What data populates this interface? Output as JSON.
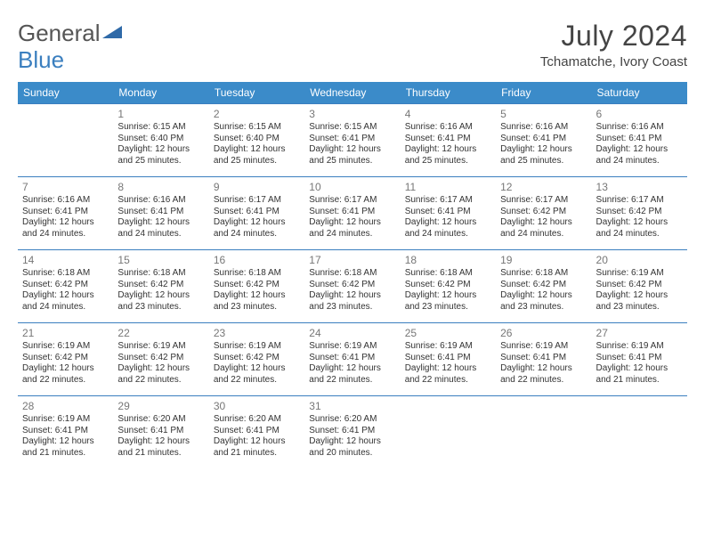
{
  "brand": {
    "part1": "General",
    "part2": "Blue"
  },
  "title": "July 2024",
  "location": "Tchamatche, Ivory Coast",
  "header_bg": "#3b8bc9",
  "border_color": "#3b7fbf",
  "weekdays": [
    "Sunday",
    "Monday",
    "Tuesday",
    "Wednesday",
    "Thursday",
    "Friday",
    "Saturday"
  ],
  "weeks": [
    [
      null,
      {
        "d": "1",
        "sr": "Sunrise: 6:15 AM",
        "ss": "Sunset: 6:40 PM",
        "dl": "Daylight: 12 hours and 25 minutes."
      },
      {
        "d": "2",
        "sr": "Sunrise: 6:15 AM",
        "ss": "Sunset: 6:40 PM",
        "dl": "Daylight: 12 hours and 25 minutes."
      },
      {
        "d": "3",
        "sr": "Sunrise: 6:15 AM",
        "ss": "Sunset: 6:41 PM",
        "dl": "Daylight: 12 hours and 25 minutes."
      },
      {
        "d": "4",
        "sr": "Sunrise: 6:16 AM",
        "ss": "Sunset: 6:41 PM",
        "dl": "Daylight: 12 hours and 25 minutes."
      },
      {
        "d": "5",
        "sr": "Sunrise: 6:16 AM",
        "ss": "Sunset: 6:41 PM",
        "dl": "Daylight: 12 hours and 25 minutes."
      },
      {
        "d": "6",
        "sr": "Sunrise: 6:16 AM",
        "ss": "Sunset: 6:41 PM",
        "dl": "Daylight: 12 hours and 24 minutes."
      }
    ],
    [
      {
        "d": "7",
        "sr": "Sunrise: 6:16 AM",
        "ss": "Sunset: 6:41 PM",
        "dl": "Daylight: 12 hours and 24 minutes."
      },
      {
        "d": "8",
        "sr": "Sunrise: 6:16 AM",
        "ss": "Sunset: 6:41 PM",
        "dl": "Daylight: 12 hours and 24 minutes."
      },
      {
        "d": "9",
        "sr": "Sunrise: 6:17 AM",
        "ss": "Sunset: 6:41 PM",
        "dl": "Daylight: 12 hours and 24 minutes."
      },
      {
        "d": "10",
        "sr": "Sunrise: 6:17 AM",
        "ss": "Sunset: 6:41 PM",
        "dl": "Daylight: 12 hours and 24 minutes."
      },
      {
        "d": "11",
        "sr": "Sunrise: 6:17 AM",
        "ss": "Sunset: 6:41 PM",
        "dl": "Daylight: 12 hours and 24 minutes."
      },
      {
        "d": "12",
        "sr": "Sunrise: 6:17 AM",
        "ss": "Sunset: 6:42 PM",
        "dl": "Daylight: 12 hours and 24 minutes."
      },
      {
        "d": "13",
        "sr": "Sunrise: 6:17 AM",
        "ss": "Sunset: 6:42 PM",
        "dl": "Daylight: 12 hours and 24 minutes."
      }
    ],
    [
      {
        "d": "14",
        "sr": "Sunrise: 6:18 AM",
        "ss": "Sunset: 6:42 PM",
        "dl": "Daylight: 12 hours and 24 minutes."
      },
      {
        "d": "15",
        "sr": "Sunrise: 6:18 AM",
        "ss": "Sunset: 6:42 PM",
        "dl": "Daylight: 12 hours and 23 minutes."
      },
      {
        "d": "16",
        "sr": "Sunrise: 6:18 AM",
        "ss": "Sunset: 6:42 PM",
        "dl": "Daylight: 12 hours and 23 minutes."
      },
      {
        "d": "17",
        "sr": "Sunrise: 6:18 AM",
        "ss": "Sunset: 6:42 PM",
        "dl": "Daylight: 12 hours and 23 minutes."
      },
      {
        "d": "18",
        "sr": "Sunrise: 6:18 AM",
        "ss": "Sunset: 6:42 PM",
        "dl": "Daylight: 12 hours and 23 minutes."
      },
      {
        "d": "19",
        "sr": "Sunrise: 6:18 AM",
        "ss": "Sunset: 6:42 PM",
        "dl": "Daylight: 12 hours and 23 minutes."
      },
      {
        "d": "20",
        "sr": "Sunrise: 6:19 AM",
        "ss": "Sunset: 6:42 PM",
        "dl": "Daylight: 12 hours and 23 minutes."
      }
    ],
    [
      {
        "d": "21",
        "sr": "Sunrise: 6:19 AM",
        "ss": "Sunset: 6:42 PM",
        "dl": "Daylight: 12 hours and 22 minutes."
      },
      {
        "d": "22",
        "sr": "Sunrise: 6:19 AM",
        "ss": "Sunset: 6:42 PM",
        "dl": "Daylight: 12 hours and 22 minutes."
      },
      {
        "d": "23",
        "sr": "Sunrise: 6:19 AM",
        "ss": "Sunset: 6:42 PM",
        "dl": "Daylight: 12 hours and 22 minutes."
      },
      {
        "d": "24",
        "sr": "Sunrise: 6:19 AM",
        "ss": "Sunset: 6:41 PM",
        "dl": "Daylight: 12 hours and 22 minutes."
      },
      {
        "d": "25",
        "sr": "Sunrise: 6:19 AM",
        "ss": "Sunset: 6:41 PM",
        "dl": "Daylight: 12 hours and 22 minutes."
      },
      {
        "d": "26",
        "sr": "Sunrise: 6:19 AM",
        "ss": "Sunset: 6:41 PM",
        "dl": "Daylight: 12 hours and 22 minutes."
      },
      {
        "d": "27",
        "sr": "Sunrise: 6:19 AM",
        "ss": "Sunset: 6:41 PM",
        "dl": "Daylight: 12 hours and 21 minutes."
      }
    ],
    [
      {
        "d": "28",
        "sr": "Sunrise: 6:19 AM",
        "ss": "Sunset: 6:41 PM",
        "dl": "Daylight: 12 hours and 21 minutes."
      },
      {
        "d": "29",
        "sr": "Sunrise: 6:20 AM",
        "ss": "Sunset: 6:41 PM",
        "dl": "Daylight: 12 hours and 21 minutes."
      },
      {
        "d": "30",
        "sr": "Sunrise: 6:20 AM",
        "ss": "Sunset: 6:41 PM",
        "dl": "Daylight: 12 hours and 21 minutes."
      },
      {
        "d": "31",
        "sr": "Sunrise: 6:20 AM",
        "ss": "Sunset: 6:41 PM",
        "dl": "Daylight: 12 hours and 20 minutes."
      },
      null,
      null,
      null
    ]
  ]
}
